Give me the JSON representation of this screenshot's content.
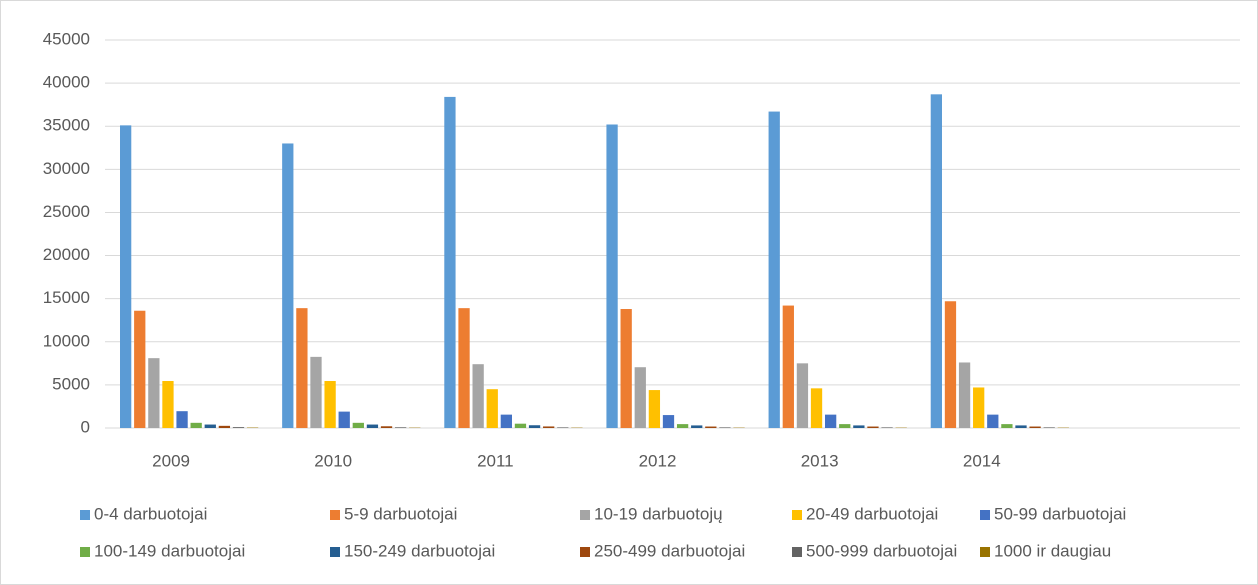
{
  "chart_data": {
    "type": "bar",
    "categories": [
      "2009",
      "2010",
      "2011",
      "2012",
      "2013",
      "2014",
      null
    ],
    "series": [
      {
        "name": "0-4 darbuotojai",
        "color": "#5b9bd5",
        "values": [
          35100,
          33000,
          38400,
          35200,
          36700,
          38700,
          null
        ]
      },
      {
        "name": "5-9 darbuotojai",
        "color": "#ed7d31",
        "values": [
          13600,
          13900,
          13900,
          13800,
          14200,
          14700,
          null
        ]
      },
      {
        "name": "10-19 darbuotojų",
        "color": "#a5a5a5",
        "values": [
          8100,
          8250,
          7400,
          7050,
          7500,
          7600,
          null
        ]
      },
      {
        "name": "20-49 darbuotojai",
        "color": "#ffc000",
        "values": [
          5450,
          5450,
          4500,
          4400,
          4600,
          4700,
          null
        ]
      },
      {
        "name": "50-99 darbuotojai",
        "color": "#4472c4",
        "values": [
          1950,
          1900,
          1550,
          1500,
          1550,
          1550,
          null
        ]
      },
      {
        "name": "100-149 darbuotojai",
        "color": "#70ad47",
        "values": [
          600,
          600,
          500,
          450,
          450,
          450,
          null
        ]
      },
      {
        "name": "150-249 darbuotojai",
        "color": "#255e91",
        "values": [
          400,
          400,
          320,
          300,
          300,
          300,
          null
        ]
      },
      {
        "name": "250-499 darbuotojai",
        "color": "#9e480e",
        "values": [
          250,
          200,
          180,
          170,
          170,
          170,
          null
        ]
      },
      {
        "name": "500-999 darbuotojai",
        "color": "#636363",
        "values": [
          100,
          80,
          70,
          70,
          70,
          70,
          null
        ]
      },
      {
        "name": "1000 ir daugiau",
        "color": "#997300",
        "values": [
          50,
          40,
          40,
          40,
          40,
          40,
          null
        ]
      }
    ],
    "ylim": [
      0,
      45000
    ],
    "yticks": [
      0,
      5000,
      10000,
      15000,
      20000,
      25000,
      30000,
      35000,
      40000,
      45000
    ],
    "grid": true,
    "legend": "bottom"
  }
}
